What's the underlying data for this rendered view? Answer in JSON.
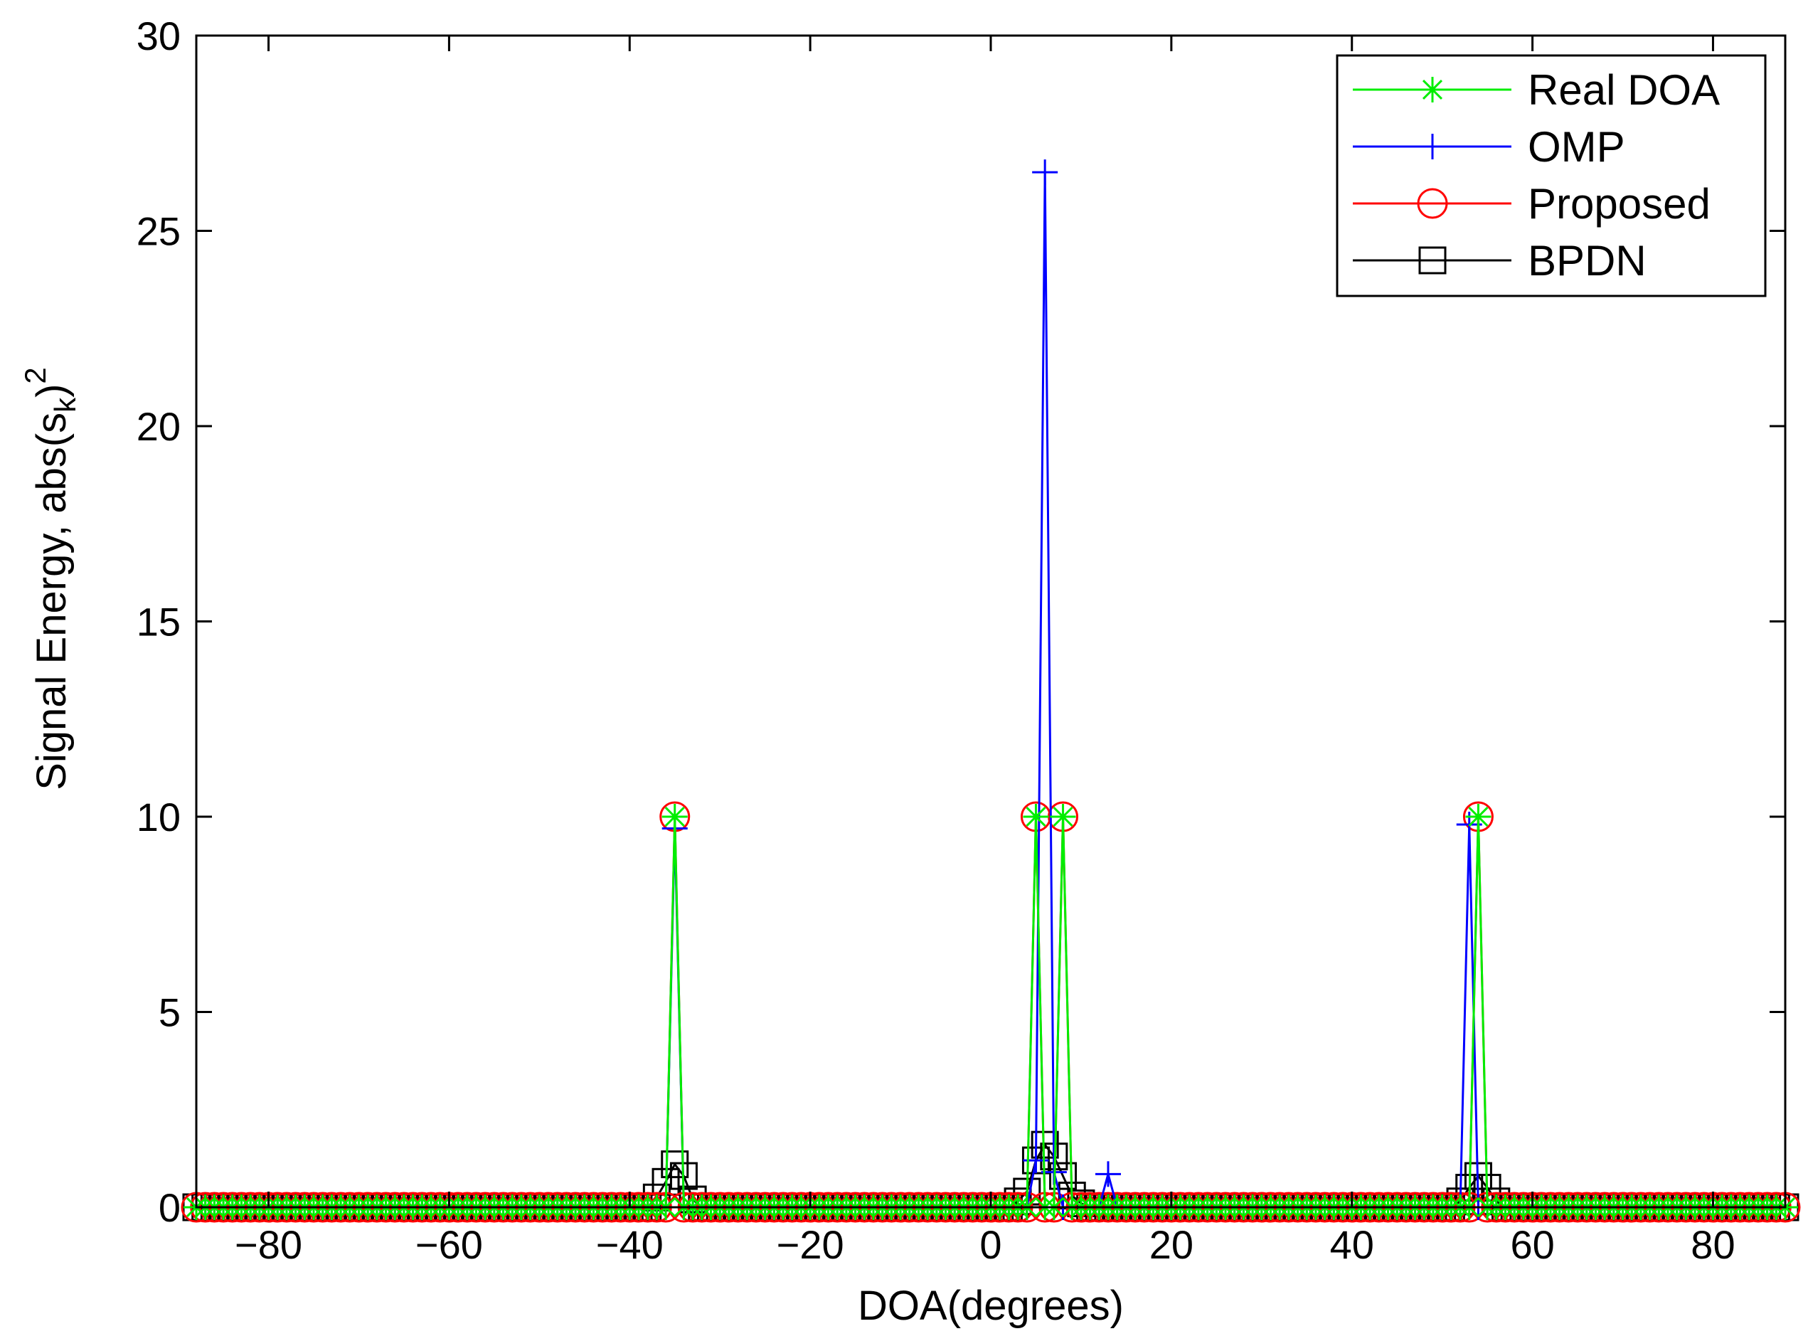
{
  "chart_data": {
    "type": "line",
    "title": "",
    "xlabel": "DOA(degrees)",
    "ylabel_main": "Signal Energy, abs(s",
    "ylabel_sub": "k",
    "ylabel_close": ")",
    "ylabel_sup": "2",
    "xlim": [
      -88,
      88
    ],
    "ylim": [
      0,
      30
    ],
    "xticks": [
      -80,
      -60,
      -40,
      -20,
      0,
      20,
      40,
      60,
      80
    ],
    "yticks": [
      0,
      5,
      10,
      15,
      20,
      25,
      30
    ],
    "xtick_labels": [
      "−80",
      "−60",
      "−40",
      "−20",
      "0",
      "20",
      "40",
      "60",
      "80"
    ],
    "ytick_labels": [
      "0",
      "5",
      "10",
      "15",
      "20",
      "25",
      "30"
    ],
    "grid": false,
    "legend_position": "top-right",
    "baseline": {
      "x_start": -88,
      "x_end": 88,
      "step": 1,
      "value": 0
    },
    "series": [
      {
        "name": "Real DOA",
        "color": "#00ee00",
        "marker": "asterisk",
        "points": [
          [
            -35,
            10
          ],
          [
            5,
            10
          ],
          [
            8,
            10
          ],
          [
            54,
            10
          ]
        ]
      },
      {
        "name": "OMP",
        "color": "#0000ff",
        "marker": "plus",
        "points": [
          [
            -35,
            9.7
          ],
          [
            5,
            1.2
          ],
          [
            6,
            26.5
          ],
          [
            7,
            0.9
          ],
          [
            13,
            0.85
          ],
          [
            53,
            9.8
          ]
        ]
      },
      {
        "name": "Proposed",
        "color": "#ff0000",
        "marker": "circle",
        "points": [
          [
            -35,
            10
          ],
          [
            5,
            10
          ],
          [
            8,
            10
          ],
          [
            54,
            10
          ]
        ]
      },
      {
        "name": "BPDN",
        "color": "#000000",
        "marker": "square",
        "points": [
          [
            -37,
            0.25
          ],
          [
            -36,
            0.65
          ],
          [
            -35,
            1.1
          ],
          [
            -34,
            0.8
          ],
          [
            -33,
            0.2
          ],
          [
            3,
            0.15
          ],
          [
            4,
            0.4
          ],
          [
            5,
            1.2
          ],
          [
            6,
            1.6
          ],
          [
            7,
            1.3
          ],
          [
            8,
            0.8
          ],
          [
            9,
            0.3
          ],
          [
            10,
            0.1
          ],
          [
            52,
            0.15
          ],
          [
            53,
            0.5
          ],
          [
            54,
            0.8
          ],
          [
            55,
            0.5
          ],
          [
            56,
            0.15
          ]
        ]
      }
    ]
  }
}
